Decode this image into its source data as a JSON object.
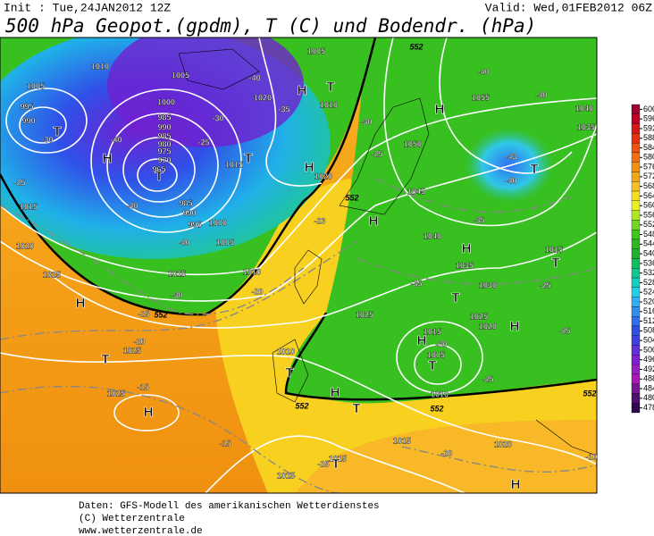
{
  "header": {
    "init": "Init : Tue,24JAN2012 12Z",
    "valid": "Valid: Wed,01FEB2012 06Z",
    "title": "500 hPa Geopot.(gpdm), T (C) und Bodendr. (hPa)"
  },
  "colorbar": {
    "ticks": [
      600,
      596,
      592,
      588,
      584,
      580,
      576,
      572,
      568,
      564,
      560,
      556,
      552,
      548,
      544,
      540,
      536,
      532,
      528,
      524,
      520,
      516,
      512,
      508,
      504,
      500,
      496,
      492,
      488,
      484,
      480,
      478
    ],
    "colors": [
      "#a00030",
      "#c00028",
      "#d81818",
      "#e83010",
      "#f05010",
      "#f07010",
      "#f09010",
      "#f0a818",
      "#f8c020",
      "#f8dc20",
      "#e8f020",
      "#b0e820",
      "#70d820",
      "#40c818",
      "#30b820",
      "#20b030",
      "#10c060",
      "#10c890",
      "#10d0c0",
      "#20d0e8",
      "#30b0f0",
      "#3090f0",
      "#3070f0",
      "#3050e8",
      "#4040e0",
      "#6030d8",
      "#8020d0",
      "#9820c0",
      "#a818b0",
      "#781890",
      "#501070",
      "#300850"
    ]
  },
  "map": {
    "pressure_labels": [
      "1010",
      "1005",
      "995",
      "990",
      "1005",
      "1000",
      "985",
      "990",
      "985",
      "980",
      "975",
      "970",
      "965",
      "985",
      "990",
      "995",
      "1000",
      "1005",
      "1010",
      "1015",
      "1015",
      "1020",
      "1025",
      "1025",
      "1025",
      "1015",
      "1020",
      "1020",
      "1010",
      "1005",
      "1050",
      "1055",
      "1045",
      "1040",
      "1035",
      "1030",
      "1025",
      "1025",
      "1020",
      "1015",
      "1005",
      "1010",
      "1010",
      "1015",
      "1015",
      "1015",
      "1020",
      "1040",
      "1035",
      "1015"
    ],
    "temperature_labels": [
      "-40",
      "-40",
      "-43",
      "-40",
      "-35",
      "-35",
      "-30",
      "-25",
      "-25",
      "-25",
      "-30",
      "-40",
      "-40",
      "-40",
      "-30",
      "-25",
      "-20",
      "-15",
      "-15",
      "-25",
      "-20",
      "-30",
      "-25",
      "-40",
      "-35",
      "-30",
      "-25",
      "-23",
      "-20",
      "-25",
      "-10"
    ],
    "centers": [
      "T",
      "T",
      "H",
      "H",
      "T",
      "H",
      "H",
      "T",
      "H",
      "T",
      "H",
      "H",
      "H",
      "T",
      "H",
      "T",
      "T",
      "T",
      "H",
      "T",
      "T",
      "H",
      "T",
      "H"
    ],
    "contour_labels": [
      "552",
      "552",
      "552",
      "552",
      "552",
      "552"
    ]
  },
  "footer": {
    "data": "Daten: GFS-Modell des amerikanischen Wetterdienstes",
    "copyright": "(C) Wetterzentrale",
    "url": "www.wetterzentrale.de"
  }
}
